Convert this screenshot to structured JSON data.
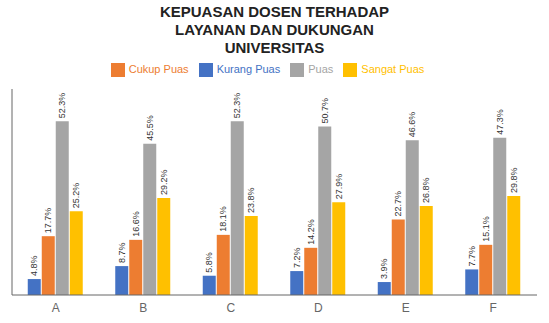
{
  "chart_data": {
    "type": "bar",
    "title": "KEPUASAN DOSEN TERHADAP\nLAYANAN DAN DUKUNGAN\nUNIVERSITAS",
    "categories": [
      "A",
      "B",
      "C",
      "D",
      "E",
      "F"
    ],
    "series": [
      {
        "name": "Kurang Puas",
        "color": "#4472C4",
        "values": [
          4.8,
          8.7,
          5.8,
          7.2,
          3.9,
          7.7
        ],
        "value_labels": [
          "4.8%",
          "8.7%",
          "5.8%",
          "7.2%",
          "3.9%",
          "7.7%"
        ]
      },
      {
        "name": "Cukup Puas",
        "color": "#ED7D31",
        "values": [
          17.7,
          16.6,
          18.1,
          14.2,
          22.7,
          15.1
        ],
        "value_labels": [
          "17.7%",
          "16.6%",
          "18.1%",
          "14.2%",
          "22.7%",
          "15.1%"
        ]
      },
      {
        "name": "Puas",
        "color": "#A5A5A5",
        "values": [
          52.3,
          45.5,
          52.3,
          50.7,
          46.6,
          47.3
        ],
        "value_labels": [
          "52.3%",
          "45.5%",
          "52.3%",
          "50.7%",
          "46.6%",
          "47.3%"
        ]
      },
      {
        "name": "Sangat Puas",
        "color": "#FFC000",
        "values": [
          25.2,
          29.2,
          23.8,
          27.9,
          26.8,
          29.8
        ],
        "value_labels": [
          "25.2%",
          "29.2%",
          "23.8%",
          "27.9%",
          "26.8%",
          "29.8%"
        ]
      }
    ],
    "ylim": [
      0,
      62
    ],
    "data_labels": true,
    "tick_labels": "x",
    "grid": false
  }
}
